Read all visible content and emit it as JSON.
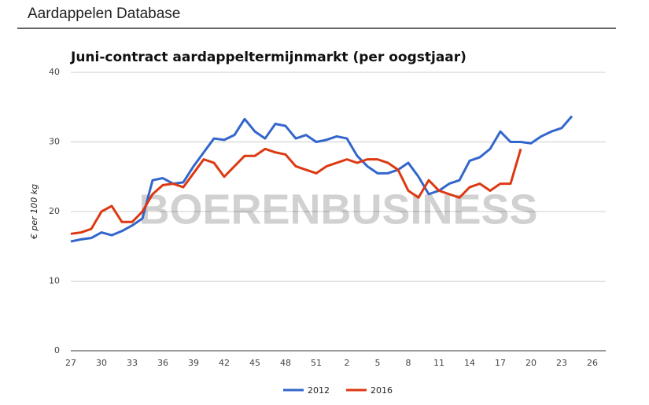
{
  "header": "Aardappelen Database",
  "chart_data": {
    "type": "line",
    "title": "Juni-contract aardappeltermijnmarkt (per oogstjaar)",
    "watermark": "BOERENBUSINESS",
    "y_label": "€ per 100 kg",
    "categories": [
      "27",
      null,
      null,
      "30",
      null,
      null,
      "33",
      null,
      null,
      "36",
      null,
      null,
      "39",
      null,
      null,
      "42",
      null,
      null,
      "45",
      null,
      null,
      "48",
      null,
      null,
      "51",
      null,
      null,
      "2",
      null,
      null,
      "5",
      null,
      null,
      "8",
      null,
      null,
      "11",
      null,
      null,
      "14",
      null,
      null,
      "17",
      null,
      null,
      "20",
      null,
      null,
      "23",
      null,
      null,
      "26"
    ],
    "ylim": [
      0,
      40
    ],
    "yticks": [
      0,
      10,
      20,
      30,
      40
    ],
    "grid": true,
    "legend": "bottom",
    "series": [
      {
        "name": "2012",
        "color": "#3366cc",
        "values": [
          15.7,
          16.0,
          16.2,
          17.0,
          16.6,
          17.2,
          18.0,
          19.0,
          24.5,
          24.8,
          24.0,
          24.2,
          26.5,
          28.5,
          30.5,
          30.3,
          31.0,
          33.3,
          31.5,
          30.5,
          32.6,
          32.3,
          30.5,
          31.0,
          30.0,
          30.3,
          30.8,
          30.5,
          28.0,
          26.5,
          25.5,
          25.5,
          26.0,
          27.0,
          25.0,
          22.5,
          23.0,
          24.0,
          24.5,
          27.3,
          27.8,
          29.0,
          31.5,
          30.0,
          30.0,
          29.8,
          30.8,
          31.5,
          32.0,
          33.7,
          null,
          null
        ]
      },
      {
        "name": "2016",
        "color": "#dc3912",
        "values": [
          16.8,
          17.0,
          17.5,
          20.0,
          20.8,
          18.5,
          18.5,
          20.0,
          22.5,
          23.8,
          24.0,
          23.5,
          25.5,
          27.5,
          27.0,
          25.0,
          26.5,
          28.0,
          28.0,
          29.0,
          28.5,
          28.2,
          26.5,
          26.0,
          25.5,
          26.5,
          27.0,
          27.5,
          27.0,
          27.5,
          27.5,
          27.0,
          26.0,
          23.0,
          22.0,
          24.5,
          23.0,
          22.5,
          22.0,
          23.5,
          24.0,
          23.0,
          24.0,
          24.0,
          29.0,
          null,
          null,
          null,
          null,
          null,
          null,
          null
        ]
      }
    ]
  }
}
